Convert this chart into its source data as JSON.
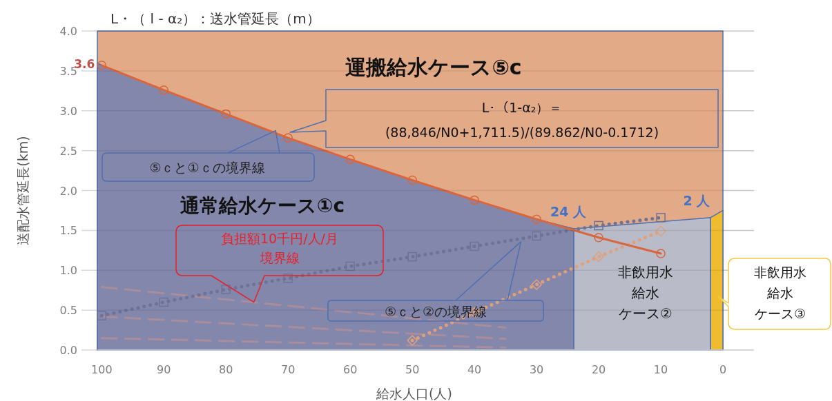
{
  "chart_data": {
    "type": "line",
    "title": "L・（ l - α₂）：送水管延長（m）",
    "xlabel": "給水人口(人)",
    "ylabel": "送配水管延長(km)",
    "xlim": [
      100.7,
      -5
    ],
    "xticks": [
      100,
      90,
      80,
      70,
      60,
      50,
      40,
      30,
      20,
      10,
      0
    ],
    "ylim": [
      0,
      4
    ],
    "yticks": [
      {
        "value": 0,
        "label": "0.0"
      },
      {
        "value": 0.5,
        "label": "0.5"
      },
      {
        "value": 1,
        "label": "1.0"
      },
      {
        "value": 1.5,
        "label": "1.5"
      },
      {
        "value": 2,
        "label": "2.0"
      },
      {
        "value": 2.5,
        "label": "2.5"
      },
      {
        "value": 3,
        "label": "3.0"
      },
      {
        "value": 3.5,
        "label": "3.5"
      },
      {
        "value": 4,
        "label": "4.0"
      }
    ],
    "grid": "y",
    "series": [
      {
        "type": "area",
        "color": "#e2aa87",
        "x": [
          100.7,
          0
        ],
        "values": [
          4.0,
          4.0
        ]
      },
      {
        "type": "area",
        "color": "#8487ac",
        "x": [
          100.7,
          100,
          90,
          80,
          70,
          60,
          50,
          40,
          30,
          24
        ],
        "values": [
          3.6,
          3.57,
          3.26,
          2.96,
          2.66,
          2.39,
          2.13,
          1.88,
          1.64,
          1.52
        ]
      },
      {
        "type": "area",
        "color": "#b9bbc8",
        "x": [
          24,
          2
        ],
        "values": [
          1.52,
          1.66
        ]
      },
      {
        "type": "area",
        "color": "#f0bc2f",
        "x": [
          2,
          0
        ],
        "values": [
          1.66,
          1.75
        ]
      },
      {
        "type": "line",
        "color": "#a88d9c",
        "line_style": "dashed",
        "marker": "none",
        "x": [
          100,
          35
        ],
        "values": [
          0.79,
          0.28
        ]
      },
      {
        "type": "line",
        "color": "#a88d9c",
        "line_style": "dashed",
        "marker": "none",
        "x": [
          100,
          35
        ],
        "values": [
          0.42,
          0.14
        ]
      },
      {
        "type": "line",
        "color": "#a88d9c",
        "line_style": "dashed",
        "marker": "none",
        "x": [
          100,
          35
        ],
        "values": [
          0.15,
          0.03
        ]
      },
      {
        "type": "line",
        "color": "#e0a07a",
        "line_style": "dotted",
        "marker": "diamond",
        "x": [
          50,
          40,
          30,
          20,
          10
        ],
        "values": [
          0.12,
          0.47,
          0.82,
          1.17,
          1.49
        ]
      },
      {
        "type": "line",
        "color": "#6e7294",
        "line_style": "dotted",
        "marker": "square",
        "x": [
          100,
          90,
          80,
          70,
          60,
          50,
          40,
          30,
          20,
          10
        ],
        "values": [
          0.43,
          0.6,
          0.76,
          0.9,
          1.05,
          1.17,
          1.3,
          1.43,
          1.56,
          1.66
        ]
      },
      {
        "type": "line",
        "color": "#d9663c",
        "line_style": "solid",
        "marker": "circle",
        "x": [
          100,
          90,
          80,
          70,
          60,
          50,
          40,
          30,
          20,
          10
        ],
        "values": [
          3.57,
          3.26,
          2.96,
          2.66,
          2.39,
          2.13,
          1.88,
          1.64,
          1.41,
          1.21
        ]
      }
    ],
    "annotations": [
      {
        "text": "3.6",
        "x": 100,
        "y": 3.6
      },
      {
        "text": "24 人",
        "x": 24,
        "y": 1.52
      },
      {
        "text": "2 人",
        "x": 2,
        "y": 1.66
      },
      "運搬給水ケース⑤c",
      "通常給水ケース①c",
      "非飲用水給水ケース②",
      "L･（1-α₂）＝(88,846/N0+1,711.5)/(89.862/N0-0.1712)",
      {
        "text": "⑤ｃと①ｃの境界線",
        "x": 72,
        "y": 2.75
      },
      {
        "text": "負担額10千円/人/月境界線",
        "x": 75.5,
        "y": 0.6
      },
      {
        "text": "⑤ｃと②の境界線",
        "x": 32.5,
        "y": 1.36
      },
      "非飲用水給水ケース③"
    ]
  }
}
